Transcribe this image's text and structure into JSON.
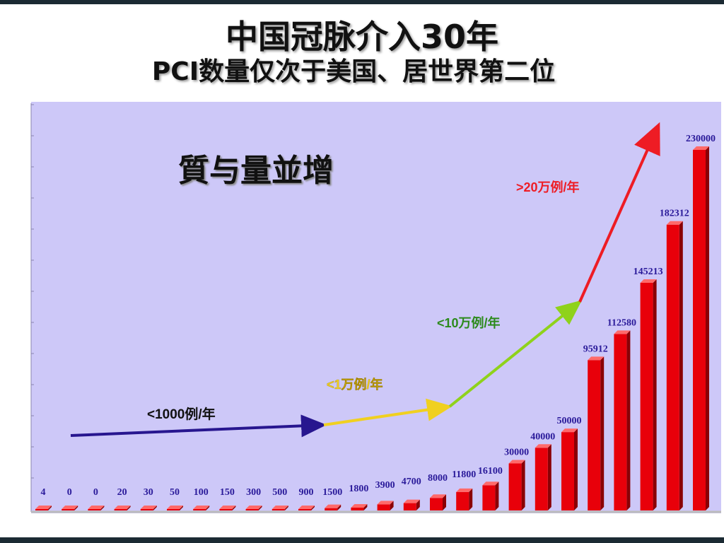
{
  "header": {
    "title": "中国冠脉介入30年",
    "subtitle": "PCI数量仅次于美国、居世界第二位"
  },
  "annotations": {
    "slogan": "質与量並增",
    "stage1": "<1000例/年",
    "stage2": "<1万例/年",
    "stage3": "<10万例/年",
    "stage4": ">20万例/年"
  },
  "colors": {
    "bar": "#e8000a",
    "plot_bg": "#cdc8f8",
    "arrow_stage1": "#27168f",
    "arrow_stage2": "#f0d020",
    "arrow_stage3": "#8fd21b",
    "arrow_stage4": "#ee1c24"
  },
  "chart_data": {
    "type": "bar",
    "values": [
      4,
      0,
      0,
      20,
      30,
      50,
      100,
      150,
      300,
      500,
      900,
      1500,
      1800,
      3900,
      4700,
      8000,
      11800,
      16100,
      30000,
      40000,
      50000,
      95912,
      112580,
      145213,
      182312,
      230000
    ],
    "data_labels": [
      "4",
      "0",
      "0",
      "20",
      "30",
      "50",
      "100",
      "150",
      "300",
      "500",
      "900",
      "1500",
      "1800",
      "3900",
      "4700",
      "8000",
      "11800",
      "16100",
      "30000",
      "40000",
      "50000",
      "95912",
      "112580",
      "145213",
      "182312",
      "230000"
    ],
    "ylim": [
      0,
      240000
    ],
    "grid": false,
    "legend": "none"
  }
}
